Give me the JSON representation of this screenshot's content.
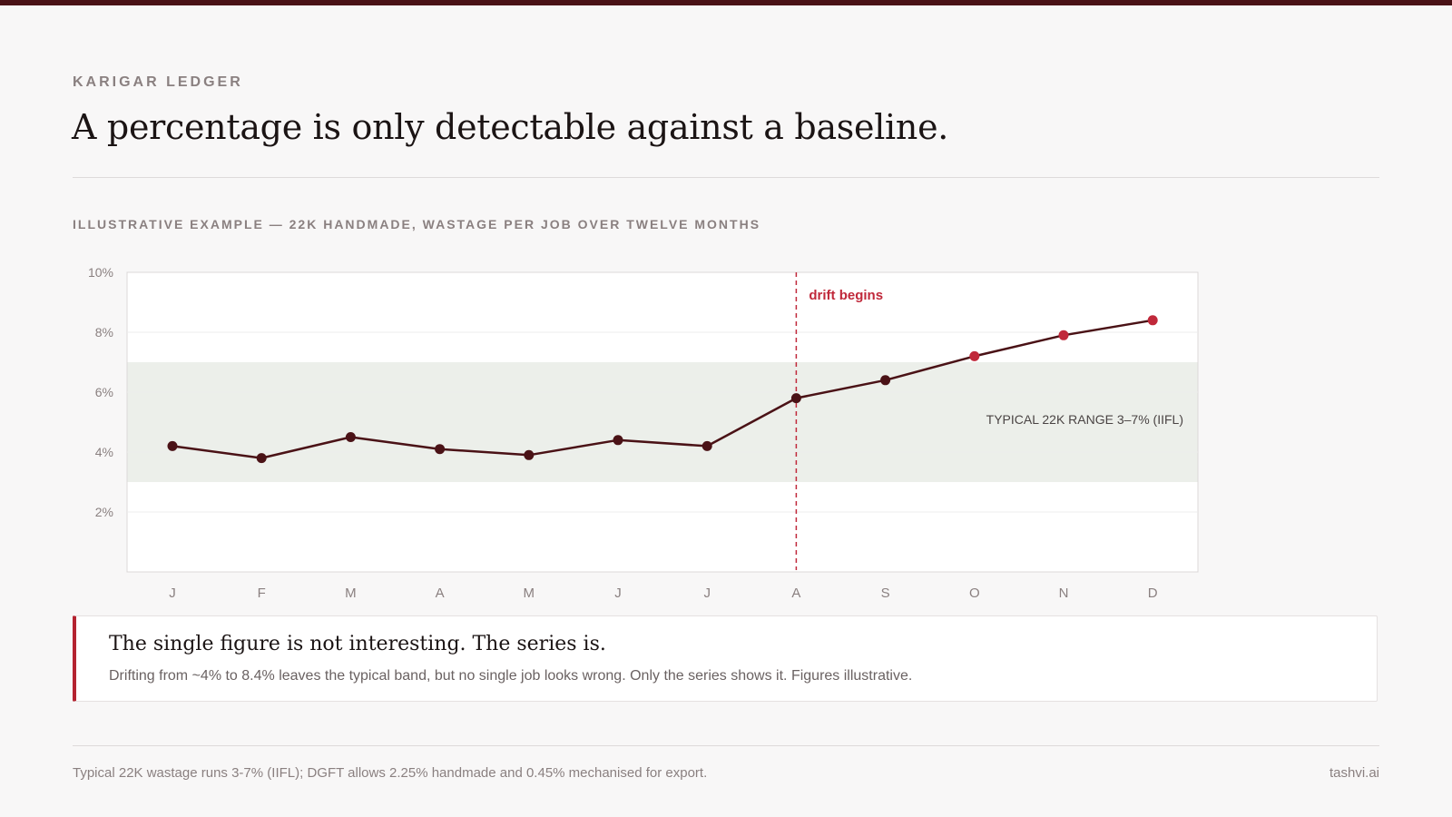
{
  "header": {
    "eyebrow": "KARIGAR LEDGER",
    "title": "A percentage is only detectable against a baseline."
  },
  "chart_section": {
    "subtitle": "ILLUSTRATIVE EXAMPLE — 22K HANDMADE, WASTAGE PER JOB OVER TWELVE MONTHS"
  },
  "chart_data": {
    "type": "line",
    "categories": [
      "J",
      "F",
      "M",
      "A",
      "M",
      "J",
      "J",
      "A",
      "S",
      "O",
      "N",
      "D"
    ],
    "series": [
      {
        "values": [
          4.2,
          3.8,
          4.5,
          4.1,
          3.9,
          4.4,
          4.2,
          5.8,
          6.4,
          7.2,
          7.9,
          8.4
        ]
      }
    ],
    "ylim": [
      0,
      10
    ],
    "yticks": [
      2,
      4,
      6,
      8,
      10
    ],
    "ytick_labels": [
      "2%",
      "4%",
      "6%",
      "8%",
      "10%"
    ],
    "band": {
      "from": 3,
      "to": 7,
      "label": "TYPICAL 22K RANGE 3–7% (IIFL)"
    },
    "annotation": {
      "category_index": 7,
      "label": "drift begins"
    },
    "highlight_from_index": 9,
    "colors": {
      "line": "#4a1216",
      "point": "#4a1216",
      "point_highlight": "#c0283a",
      "band": "#ecefea",
      "annotation": "#c0283a"
    },
    "grid": true
  },
  "callout": {
    "title": "The single figure is not interesting. The series is.",
    "body": "Drifting from ~4% to 8.4% leaves the typical band, but no single job looks wrong. Only the series shows it. Figures illustrative."
  },
  "footer": {
    "note": "Typical 22K wastage runs 3-7% (IIFL); DGFT allows 2.25% handmade and 0.45% mechanised for export.",
    "brand": "tashvi.ai"
  }
}
